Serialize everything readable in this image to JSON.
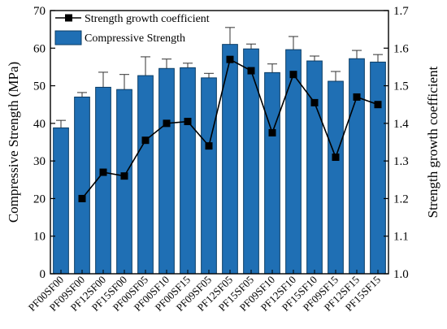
{
  "chart_data": {
    "type": "bar",
    "categories": [
      "PF00SF00",
      "PF09SF00",
      "PF12SF00",
      "PF15SF00",
      "PF00SF05",
      "PF00SF10",
      "PF00SF15",
      "PF09SF05",
      "PF12SF05",
      "PF15SF05",
      "PF09SF10",
      "PF12SF10",
      "PF15SF10",
      "PF09SF15",
      "PF12SF15",
      "PF15SF15"
    ],
    "series": [
      {
        "name": "Compressive Strength",
        "axis": "left",
        "chart_kind": "bar",
        "color": "#1f6fb4",
        "values": [
          38.8,
          47.0,
          49.6,
          49.0,
          52.7,
          54.6,
          54.8,
          52.1,
          61.0,
          59.8,
          53.5,
          59.6,
          56.6,
          51.2,
          57.2,
          56.3
        ],
        "error": [
          2.0,
          1.2,
          4.0,
          4.0,
          5.0,
          2.5,
          1.2,
          1.2,
          4.5,
          1.3,
          2.3,
          3.5,
          1.3,
          2.6,
          2.2,
          2.0
        ]
      },
      {
        "name": "Strength growth coefficient",
        "axis": "right",
        "chart_kind": "line",
        "color": "#000000",
        "values": [
          null,
          1.2,
          1.27,
          1.26,
          1.355,
          1.4,
          1.405,
          1.34,
          1.57,
          1.54,
          1.375,
          1.53,
          1.455,
          1.31,
          1.47,
          1.45
        ]
      }
    ],
    "y_left": {
      "label": "Compressive Strength (MPa)",
      "min": 0,
      "max": 70,
      "ticks": [
        "0",
        "10",
        "20",
        "30",
        "40",
        "50",
        "60",
        "70"
      ]
    },
    "y_right": {
      "label": "Strength growth coefficient",
      "min": 1.0,
      "max": 1.7,
      "ticks": [
        "1.0",
        "1.1",
        "1.2",
        "1.3",
        "1.4",
        "1.5",
        "1.6",
        "1.7"
      ]
    },
    "legend": {
      "placement": "top-left",
      "entries": [
        {
          "label": "Strength growth coefficient",
          "kind": "line-marker"
        },
        {
          "label": "Compressive Strength",
          "kind": "bar"
        }
      ]
    },
    "grid": false
  }
}
